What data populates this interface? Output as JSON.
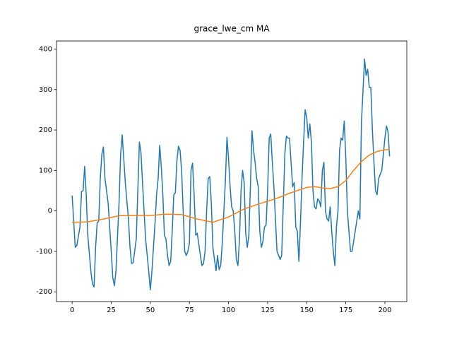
{
  "chart_data": {
    "type": "line",
    "title": "grace_lwe_cm MA",
    "xlim": [
      -10,
      214
    ],
    "xticks": [
      0,
      25,
      50,
      75,
      100,
      125,
      150,
      175,
      200
    ],
    "ylim": [
      -224,
      420
    ],
    "yticks": [
      -200,
      -100,
      0,
      100,
      200,
      300,
      400
    ],
    "grid": false,
    "series": [
      {
        "color": "#1f77b4",
        "x": [
          0,
          2,
          3,
          5,
          6,
          7,
          8,
          9,
          10,
          12,
          13,
          14,
          15,
          16,
          17,
          18,
          19,
          20,
          21,
          23,
          25,
          26,
          27,
          28,
          30,
          31,
          32,
          33,
          34,
          36,
          37,
          38,
          39,
          41,
          42,
          43,
          44,
          45,
          47,
          49,
          50,
          51,
          53,
          54,
          55,
          56,
          57,
          58,
          59,
          60,
          61,
          62,
          63,
          64,
          65,
          66,
          67,
          68,
          69,
          70,
          71,
          72,
          73,
          74,
          75,
          76,
          77,
          78,
          79,
          80,
          82,
          83,
          84,
          85,
          86,
          87,
          88,
          89,
          90,
          91,
          92,
          93,
          94,
          95,
          96,
          98,
          99,
          100,
          101,
          102,
          103,
          104,
          105,
          106,
          107,
          108,
          109,
          110,
          111,
          112,
          113,
          114,
          115,
          116,
          117,
          118,
          119,
          120,
          121,
          122,
          123,
          124,
          125,
          126,
          127,
          128,
          129,
          131,
          132,
          133,
          134,
          136,
          137,
          138,
          139,
          140,
          141,
          142,
          143,
          144,
          145,
          146,
          147,
          148,
          149,
          150,
          151,
          152,
          153,
          154,
          155,
          156,
          157,
          158,
          159,
          160,
          161,
          162,
          163,
          164,
          165,
          166,
          167,
          168,
          169,
          170,
          171,
          172,
          173,
          174,
          175,
          176,
          177,
          178,
          179,
          183,
          184,
          185,
          187,
          188,
          189,
          190,
          191,
          192,
          193,
          194,
          195,
          196,
          197,
          198,
          200,
          201,
          202,
          203
        ],
        "values": [
          38,
          -90,
          -85,
          -40,
          48,
          50,
          110,
          40,
          -60,
          -150,
          -180,
          -188,
          -90,
          -30,
          -25,
          80,
          140,
          158,
          80,
          20,
          -100,
          -165,
          -185,
          -150,
          20,
          140,
          188,
          130,
          70,
          -20,
          -90,
          -130,
          -128,
          -70,
          50,
          170,
          145,
          70,
          -70,
          -150,
          -195,
          -150,
          -30,
          40,
          80,
          162,
          110,
          40,
          -60,
          -70,
          -110,
          -135,
          -125,
          -50,
          40,
          45,
          125,
          160,
          150,
          100,
          0,
          -100,
          -110,
          -100,
          -80,
          100,
          118,
          40,
          -60,
          -55,
          -110,
          -135,
          -130,
          -100,
          0,
          80,
          85,
          20,
          -90,
          -120,
          -148,
          -110,
          -145,
          -135,
          -80,
          75,
          182,
          130,
          60,
          10,
          0,
          -50,
          -120,
          -135,
          -70,
          50,
          100,
          70,
          -55,
          -90,
          -60,
          60,
          198,
          150,
          120,
          80,
          60,
          -50,
          -90,
          -75,
          -40,
          -35,
          50,
          180,
          190,
          120,
          60,
          -100,
          -110,
          -120,
          -110,
          140,
          185,
          180,
          180,
          120,
          60,
          70,
          -40,
          -50,
          -125,
          -30,
          80,
          170,
          250,
          230,
          180,
          215,
          170,
          50,
          10,
          5,
          30,
          25,
          10,
          100,
          120,
          0,
          -20,
          -25,
          10,
          -50,
          -100,
          -135,
          -40,
          0,
          150,
          180,
          175,
          222,
          130,
          0,
          -50,
          -100,
          -100,
          0,
          -20,
          220,
          375,
          335,
          350,
          305,
          305,
          200,
          120,
          50,
          40,
          80,
          90,
          100,
          180,
          210,
          195,
          135
        ]
      },
      {
        "color": "#ff7f0e",
        "x": [
          0,
          10,
          20,
          30,
          40,
          50,
          60,
          70,
          80,
          90,
          100,
          110,
          120,
          130,
          140,
          150,
          155,
          160,
          165,
          170,
          175,
          180,
          185,
          190,
          195,
          200,
          203
        ],
        "values": [
          -28,
          -27,
          -20,
          -12,
          -11,
          -11,
          -8,
          -9,
          -20,
          -28,
          -15,
          5,
          18,
          30,
          45,
          58,
          60,
          57,
          55,
          60,
          75,
          100,
          122,
          138,
          147,
          151,
          152
        ]
      }
    ]
  }
}
